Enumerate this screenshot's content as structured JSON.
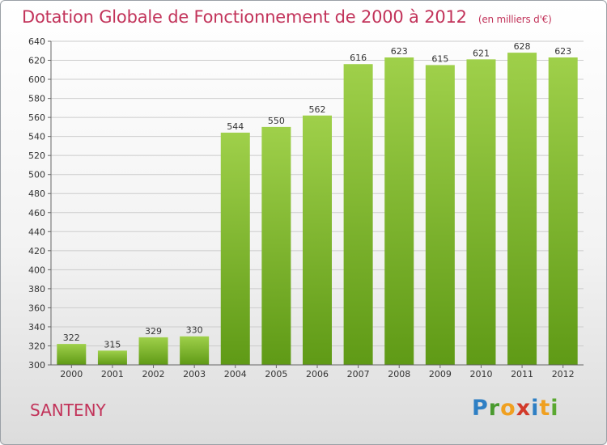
{
  "header": {
    "title": "Dotation Globale de Fonctionnement de 2000 à 2012",
    "subtitle": "(en milliers d'€)"
  },
  "footer": {
    "place": "SANTENY",
    "logo_letters": [
      "P",
      "r",
      "o",
      "x",
      "i",
      "t",
      "i"
    ],
    "logo_colors": [
      "#2e7fc4",
      "#4a9a2f",
      "#f0a020",
      "#d23a2a",
      "#2e7fc4",
      "#f0a020",
      "#5aa830"
    ]
  },
  "chart_data": {
    "type": "bar",
    "title": "Dotation Globale de Fonctionnement de 2000 à 2012",
    "categories": [
      "2000",
      "2001",
      "2002",
      "2003",
      "2004",
      "2005",
      "2006",
      "2007",
      "2008",
      "2009",
      "2010",
      "2011",
      "2012"
    ],
    "values": [
      322,
      315,
      329,
      330,
      544,
      550,
      562,
      616,
      623,
      615,
      621,
      628,
      623
    ],
    "ylim": [
      300,
      640
    ],
    "yticks": [
      300,
      320,
      340,
      360,
      380,
      400,
      420,
      440,
      460,
      480,
      500,
      520,
      540,
      560,
      580,
      600,
      620,
      640
    ],
    "grid": true,
    "bar_color_top": "#9fd04a",
    "bar_color_bottom": "#5f9a16",
    "grid_color": "#cccccc"
  }
}
